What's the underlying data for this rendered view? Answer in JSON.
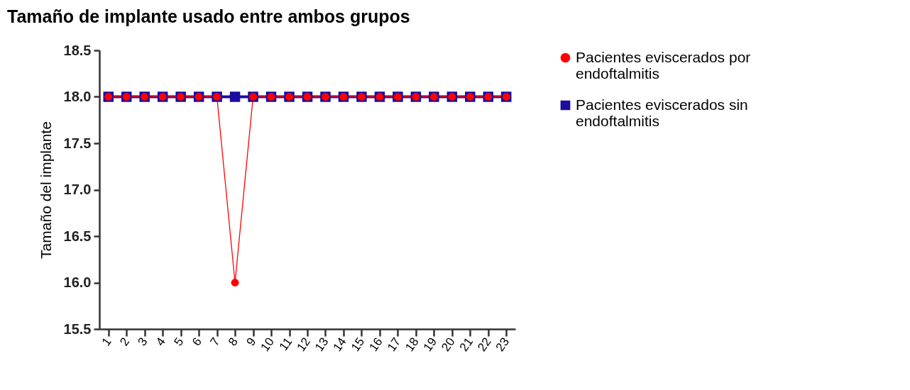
{
  "chart_data": {
    "type": "line",
    "title": "Tamaño de implante usado entre ambos grupos",
    "ylabel": "Tamaño del implante",
    "categories": [
      "1",
      "2",
      "3",
      "4",
      "5",
      "6",
      "7",
      "8",
      "9",
      "10",
      "11",
      "12",
      "13",
      "14",
      "15",
      "16",
      "17",
      "18",
      "19",
      "20",
      "21",
      "22",
      "23"
    ],
    "series": [
      {
        "name": "Pacientes eviscerados sin endoftalmitis",
        "color": "#1a0ca0",
        "marker": "square",
        "values": [
          18,
          18,
          18,
          18,
          18,
          18,
          18,
          18,
          18,
          18,
          18,
          18,
          18,
          18,
          18,
          18,
          18,
          18,
          18,
          18,
          18,
          18,
          18
        ]
      },
      {
        "name": "Pacientes eviscerados por endoftalmitis",
        "color": "#ff0000",
        "marker": "circle",
        "values": [
          18,
          18,
          18,
          18,
          18,
          18,
          18,
          16,
          18,
          18,
          18,
          18,
          18,
          18,
          18,
          18,
          18,
          18,
          18,
          18,
          18,
          18,
          18
        ]
      }
    ],
    "ylim": [
      15.5,
      18.5
    ],
    "yticks": [
      15.5,
      {
        "value": 16,
        "label": "16.0"
      },
      16.5,
      {
        "value": 17,
        "label": "17.0"
      },
      17.5,
      {
        "value": 18,
        "label": "18.0"
      },
      18.5
    ],
    "grid": false,
    "legend": "right"
  }
}
